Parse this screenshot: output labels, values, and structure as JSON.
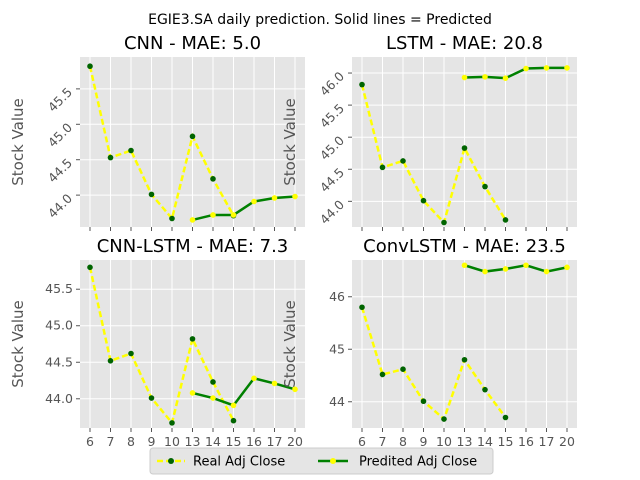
{
  "chart_data": {
    "suptitle": "EGIE3.SA daily prediction. Solid lines = Predicted",
    "x_ticks": [
      "6",
      "7",
      "8",
      "9",
      "10",
      "13",
      "14",
      "15",
      "16",
      "17",
      "20"
    ],
    "legend": {
      "real_label": "Real Adj Close",
      "pred_label": "Predited Adj Close",
      "placement": "bottom-center"
    },
    "colors": {
      "real": "#ffff00",
      "real_marker": "#006400",
      "pred": "#008000",
      "pred_marker": "#ffff00"
    },
    "subplots": [
      {
        "type": "line",
        "title": "CNN - MAE: 5.0",
        "ylabel": "Stock Value",
        "ylim": [
          43.55,
          45.95
        ],
        "yticks": [
          44.0,
          44.5,
          45.0,
          45.5
        ],
        "ytick_labels": [
          "44.0",
          "44.5",
          "45.0",
          "45.5"
        ],
        "ytick_rotation": -45,
        "show_xtick_labels": false,
        "real": {
          "x": [
            "6",
            "7",
            "8",
            "9",
            "10",
            "13",
            "14",
            "15"
          ],
          "y": [
            45.82,
            44.53,
            44.63,
            44.01,
            43.67,
            44.83,
            44.23,
            43.71
          ]
        },
        "predicted": {
          "x": [
            "13",
            "14",
            "15",
            "16",
            "17",
            "20"
          ],
          "y": [
            43.65,
            43.72,
            43.72,
            43.91,
            43.96,
            43.98
          ]
        }
      },
      {
        "type": "line",
        "title": "LSTM - MAE: 20.8",
        "ylabel": "Stock Value",
        "ylim": [
          43.6,
          46.25
        ],
        "yticks": [
          44.0,
          44.5,
          45.0,
          45.5,
          46.0
        ],
        "ytick_labels": [
          "44.0",
          "44.5",
          "45.0",
          "45.5",
          "46.0"
        ],
        "ytick_rotation": -45,
        "show_xtick_labels": false,
        "real": {
          "x": [
            "6",
            "7",
            "8",
            "9",
            "10",
            "13",
            "14",
            "15"
          ],
          "y": [
            45.82,
            44.53,
            44.63,
            44.01,
            43.67,
            44.83,
            44.23,
            43.71
          ]
        },
        "predicted": {
          "x": [
            "13",
            "14",
            "15",
            "16",
            "17",
            "20"
          ],
          "y": [
            45.93,
            45.94,
            45.92,
            46.07,
            46.08,
            46.08
          ]
        }
      },
      {
        "type": "line",
        "title": "CNN-LSTM - MAE: 7.3",
        "ylabel": "Stock Value",
        "ylim": [
          43.6,
          45.9
        ],
        "yticks": [
          44.0,
          44.5,
          45.0,
          45.5
        ],
        "ytick_labels": [
          "44.0",
          "44.5",
          "45.0",
          "45.5"
        ],
        "ytick_rotation": 0,
        "show_xtick_labels": true,
        "real": {
          "x": [
            "6",
            "7",
            "8",
            "9",
            "10",
            "13",
            "14",
            "15"
          ],
          "y": [
            45.8,
            44.52,
            44.62,
            44.01,
            43.67,
            44.82,
            44.23,
            43.7
          ]
        },
        "predicted": {
          "x": [
            "13",
            "14",
            "15",
            "16",
            "17",
            "20"
          ],
          "y": [
            44.08,
            44.01,
            43.91,
            44.28,
            44.21,
            44.13
          ]
        }
      },
      {
        "type": "line",
        "title": "ConvLSTM - MAE: 23.5",
        "ylabel": "Stock Value",
        "ylim": [
          43.5,
          46.7
        ],
        "yticks": [
          44,
          45,
          46
        ],
        "ytick_labels": [
          "44",
          "45",
          "46"
        ],
        "ytick_rotation": 0,
        "show_xtick_labels": true,
        "real": {
          "x": [
            "6",
            "7",
            "8",
            "9",
            "10",
            "13",
            "14",
            "15"
          ],
          "y": [
            45.8,
            44.52,
            44.62,
            44.01,
            43.67,
            44.8,
            44.23,
            43.7
          ]
        },
        "predicted": {
          "x": [
            "13",
            "14",
            "15",
            "16",
            "17",
            "20"
          ],
          "y": [
            46.6,
            46.48,
            46.53,
            46.6,
            46.48,
            46.56
          ]
        }
      }
    ]
  }
}
